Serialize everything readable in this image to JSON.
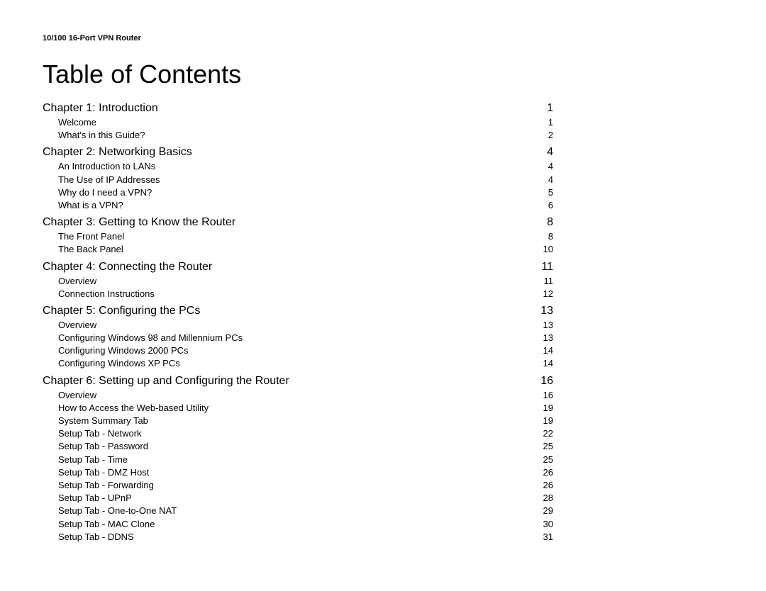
{
  "header": "10/100 16-Port VPN Router",
  "title": "Table of Contents",
  "chapters": [
    {
      "label": "Chapter 1: Introduction",
      "page": "1",
      "subs": [
        {
          "label": "Welcome",
          "page": "1"
        },
        {
          "label": "What's in this Guide?",
          "page": "2"
        }
      ]
    },
    {
      "label": "Chapter 2: Networking Basics",
      "page": "4",
      "subs": [
        {
          "label": "An Introduction to LANs",
          "page": "4"
        },
        {
          "label": "The Use of IP Addresses",
          "page": "4"
        },
        {
          "label": "Why do I need a VPN?",
          "page": "5"
        },
        {
          "label": "What is a VPN?",
          "page": "6"
        }
      ]
    },
    {
      "label": "Chapter 3: Getting to Know the Router",
      "page": "8",
      "subs": [
        {
          "label": "The Front Panel",
          "page": "8"
        },
        {
          "label": "The Back Panel",
          "page": "10"
        }
      ]
    },
    {
      "label": "Chapter 4: Connecting the Router",
      "page": "11",
      "subs": [
        {
          "label": "Overview",
          "page": "11"
        },
        {
          "label": "Connection Instructions",
          "page": "12"
        }
      ]
    },
    {
      "label": "Chapter 5: Configuring the PCs",
      "page": "13",
      "subs": [
        {
          "label": "Overview",
          "page": "13"
        },
        {
          "label": "Configuring Windows 98 and Millennium PCs",
          "page": "13"
        },
        {
          "label": "Configuring Windows 2000 PCs",
          "page": "14"
        },
        {
          "label": "Configuring Windows XP PCs",
          "page": "14"
        }
      ]
    },
    {
      "label": "Chapter 6: Setting up and Configuring the Router",
      "page": "16",
      "subs": [
        {
          "label": "Overview",
          "page": "16"
        },
        {
          "label": "How to Access the Web-based Utility",
          "page": "19"
        },
        {
          "label": "System Summary Tab",
          "page": "19"
        },
        {
          "label": "Setup Tab - Network",
          "page": "22"
        },
        {
          "label": "Setup Tab - Password",
          "page": "25"
        },
        {
          "label": "Setup Tab - Time",
          "page": "25"
        },
        {
          "label": "Setup Tab - DMZ Host",
          "page": "26"
        },
        {
          "label": "Setup Tab - Forwarding",
          "page": "26"
        },
        {
          "label": "Setup Tab - UPnP",
          "page": "28"
        },
        {
          "label": "Setup Tab - One-to-One NAT",
          "page": "29"
        },
        {
          "label": "Setup Tab - MAC Clone",
          "page": "30"
        },
        {
          "label": "Setup Tab - DDNS",
          "page": "31"
        }
      ]
    }
  ]
}
